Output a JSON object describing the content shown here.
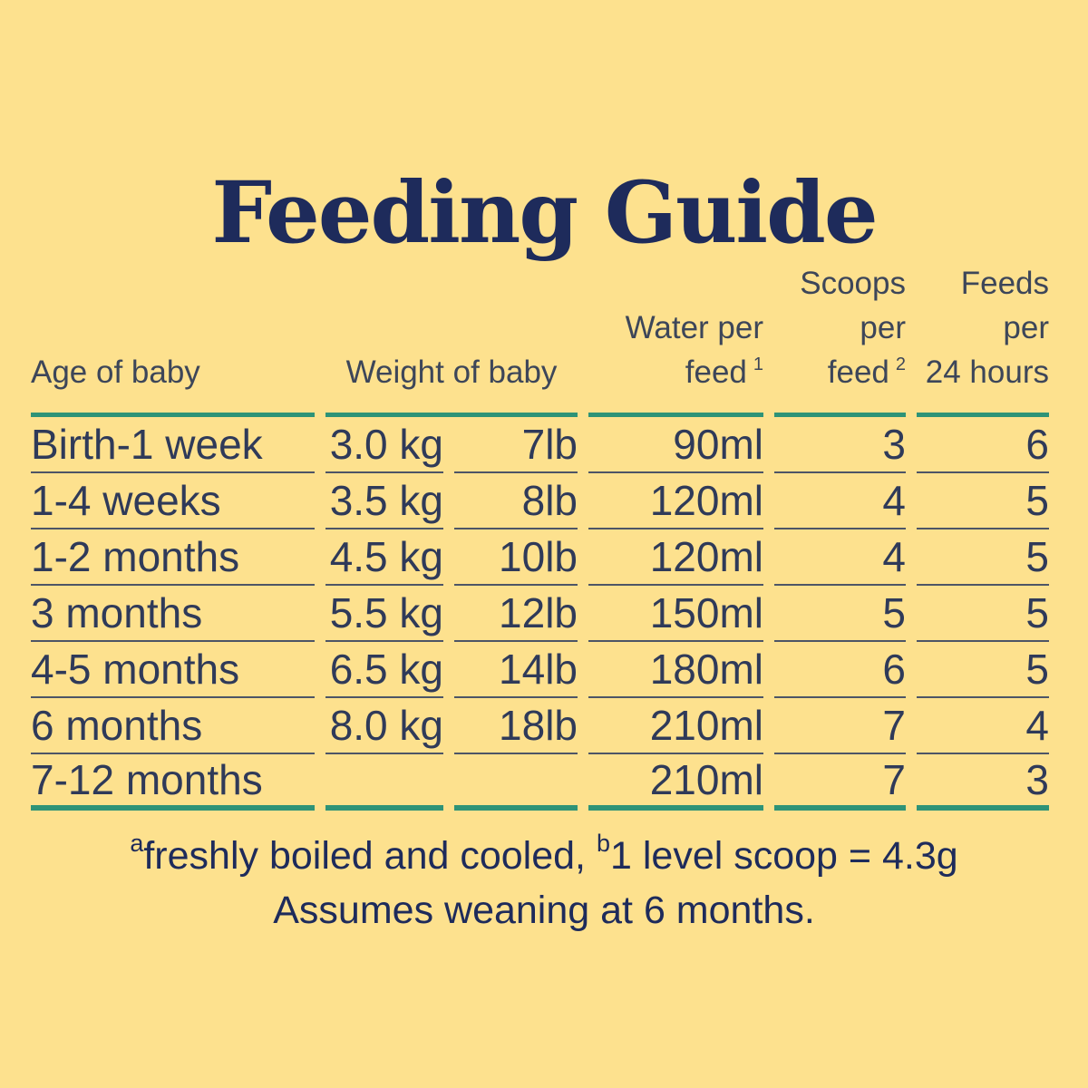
{
  "title": "Feeding Guide",
  "table": {
    "headers": {
      "age": "Age of baby",
      "weight": "Weight of baby",
      "water_line1": "Water per",
      "water_line2": "feed",
      "water_sup": "1",
      "scoops_line1": "Scoops",
      "scoops_line2": "per feed",
      "scoops_sup": "2",
      "feeds_line1": "Feeds per",
      "feeds_line2": "24 hours"
    },
    "rows": [
      {
        "age": "Birth-1 week",
        "kg": "3.0 kg",
        "lb": "7lb",
        "water": "90ml",
        "scoops": "3",
        "feeds": "6"
      },
      {
        "age": "1-4 weeks",
        "kg": "3.5 kg",
        "lb": "8lb",
        "water": "120ml",
        "scoops": "4",
        "feeds": "5"
      },
      {
        "age": "1-2 months",
        "kg": "4.5 kg",
        "lb": "10lb",
        "water": "120ml",
        "scoops": "4",
        "feeds": "5"
      },
      {
        "age": "3 months",
        "kg": "5.5 kg",
        "lb": "12lb",
        "water": "150ml",
        "scoops": "5",
        "feeds": "5"
      },
      {
        "age": "4-5 months",
        "kg": "6.5 kg",
        "lb": "14lb",
        "water": "180ml",
        "scoops": "6",
        "feeds": "5"
      },
      {
        "age": "6 months",
        "kg": "8.0 kg",
        "lb": "18lb",
        "water": "210ml",
        "scoops": "7",
        "feeds": "4"
      },
      {
        "age": "7-12 months",
        "kg": "",
        "lb": "",
        "water": "210ml",
        "scoops": "7",
        "feeds": "3"
      }
    ]
  },
  "footnotes": {
    "sup_a": "a",
    "line1_part1": "freshly boiled and cooled, ",
    "sup_b": "b",
    "line1_part2": "1 level scoop = 4.3g",
    "line2": "Assumes weaning at 6 months."
  },
  "colors": {
    "background": "#FDE18E",
    "accent_teal": "#2E9377",
    "title_navy": "#1E2B5B",
    "body_text": "#2F3A59",
    "header_text": "#3D4659",
    "separator": "#4D5566"
  }
}
